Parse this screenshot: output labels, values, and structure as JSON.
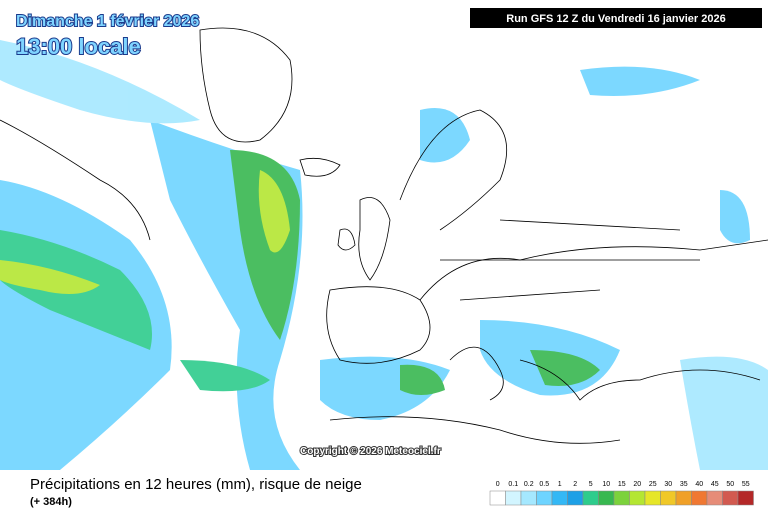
{
  "header": {
    "date": "Dimanche 1 février 2026",
    "time": "13:00 locale",
    "run": "Run GFS 12 Z du Vendredi 16 janvier 2026"
  },
  "copyright": "Copyright © 2026 Meteociel.fr",
  "caption": {
    "title": "Précipitations en 12 heures (mm), risque de neige",
    "lead": "(+ 384h)"
  },
  "legend": [
    {
      "label": "0",
      "color": "#ffffff"
    },
    {
      "label": "0.1",
      "color": "#d2f5ff"
    },
    {
      "label": "0.2",
      "color": "#a5e8ff"
    },
    {
      "label": "0.5",
      "color": "#6ed4ff"
    },
    {
      "label": "1",
      "color": "#34b8f5"
    },
    {
      "label": "2",
      "color": "#1ea0e6"
    },
    {
      "label": "5",
      "color": "#2ecc8c"
    },
    {
      "label": "10",
      "color": "#38b850"
    },
    {
      "label": "15",
      "color": "#7cd23c"
    },
    {
      "label": "20",
      "color": "#b4e632"
    },
    {
      "label": "25",
      "color": "#e6e628"
    },
    {
      "label": "30",
      "color": "#f0c828"
    },
    {
      "label": "35",
      "color": "#f0a028"
    },
    {
      "label": "40",
      "color": "#f07832"
    },
    {
      "label": "45",
      "color": "#e68c78"
    },
    {
      "label": "50",
      "color": "#d25a50"
    },
    {
      "label": "55",
      "color": "#b42828"
    }
  ]
}
